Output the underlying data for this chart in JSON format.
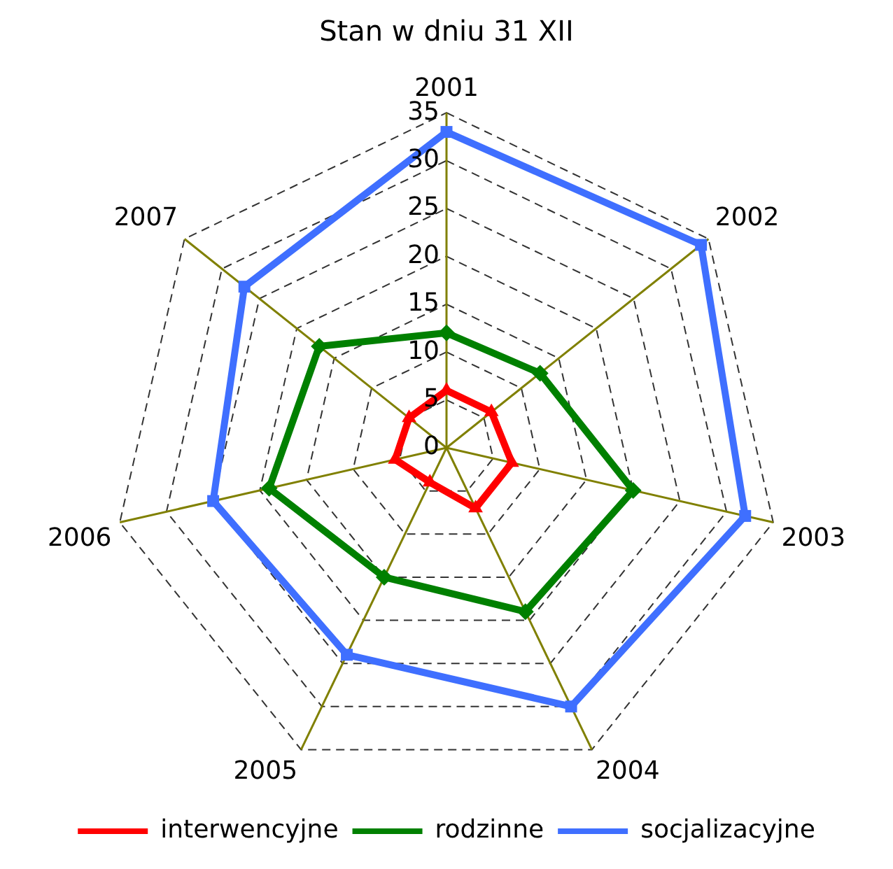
{
  "chart_data": {
    "type": "radar",
    "title": "Stan w dniu 31 XII",
    "categories": [
      "2001",
      "2002",
      "2003",
      "2004",
      "2005",
      "2006",
      "2007"
    ],
    "series": [
      {
        "name": "interwencyjne",
        "color": "#ff0000",
        "values": [
          6,
          6,
          7,
          7,
          4,
          5.5,
          5
        ],
        "marker": "triangle"
      },
      {
        "name": "rodzinne",
        "color": "#008000",
        "values": [
          12,
          12.5,
          20,
          19,
          15,
          19,
          17
        ],
        "marker": "diamond"
      },
      {
        "name": "socjalizacyjne",
        "color": "#3f6fff",
        "values": [
          33,
          34,
          32,
          30,
          24,
          25,
          27
        ],
        "marker": "square"
      }
    ],
    "ylim": [
      0,
      35
    ],
    "yticks": [
      0,
      5,
      10,
      15,
      20,
      25,
      30,
      35
    ],
    "grid": true,
    "legend": "bottom",
    "line_style": "solid"
  }
}
